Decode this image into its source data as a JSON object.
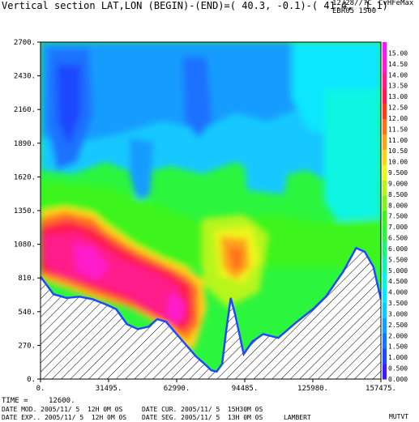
{
  "header": {
    "title": "Vertical section LAT,LON (BEGIN)-(END)=( 40.3, -0.1)-( 41.4,  1.1)",
    "units_label": "12/28//?C",
    "model_label": "CvHFeMax",
    "grid_label": "EBR05 1500"
  },
  "footer": {
    "time_label": "TIME =",
    "time_value": "12600.",
    "mod_line": "DATE MOD. 2005/11/ 5  12H 0M 0S",
    "cur_line": "DATE CUR. 2005/11/ 5  15H30M 0S",
    "exp_line": "DATE EXP.. 2005/11/ 5  12H 0M 0S",
    "seg_line": "DATE SEG. 2005/11/ 5  13H 0M 0S",
    "projection": "LAMBERT",
    "program": "MUTVT"
  },
  "colors": {
    "palette": [
      "#3a1cff",
      "#1f49ff",
      "#1a72ff",
      "#179cff",
      "#13c8ff",
      "#0de6ff",
      "#08f5e2",
      "#10f5b0",
      "#1cf578",
      "#2cf53e",
      "#3cf51c",
      "#7cf51c",
      "#b8f51c",
      "#f0f51c",
      "#ffd11c",
      "#ffa21c",
      "#ff701c",
      "#ff3a1c",
      "#ff1c4a",
      "#ff1c8a",
      "#ff1ccc",
      "#f01cf5"
    ],
    "terrain_fill": "#ffffff",
    "terrain_hatch": "#000000"
  },
  "chart_data": {
    "type": "heatmap",
    "title": "Vertical section LAT,LON (BEGIN)-(END)=( 40.3, -0.1)-( 41.4,  1.1)",
    "xlabel": "",
    "ylabel": "",
    "xlim": [
      0,
      157475
    ],
    "ylim": [
      0,
      2700
    ],
    "x_ticks": [
      "0.",
      "31495.",
      "62990.",
      "94485.",
      "125980.",
      "157475."
    ],
    "y_ticks": [
      "0.",
      "270.",
      "540.",
      "810.",
      "1080.",
      "1350.",
      "1620.",
      "1890.",
      "2160.",
      "2430.",
      "2700."
    ],
    "colorbar": {
      "levels": [
        "0.000",
        "0.500",
        "1.000",
        "1.500",
        "2.000",
        "2.500",
        "3.000",
        "3.500",
        "4.000",
        "4.500",
        "5.000",
        "5.500",
        "6.000",
        "6.500",
        "7.000",
        "7.500",
        "8.000",
        "8.500",
        "9.000",
        "9.500",
        "10.00",
        "10.50",
        "11.00",
        "11.50",
        "12.00",
        "12.50",
        "13.00",
        "13.50",
        "14.00",
        "14.50",
        "15.00"
      ],
      "min": 0,
      "max": 15.5
    },
    "terrain_profile": {
      "x": [
        0,
        6000,
        12000,
        18000,
        24000,
        30000,
        35000,
        40000,
        45000,
        50000,
        54000,
        58000,
        63000,
        68000,
        72000,
        76000,
        79000,
        81500,
        84000,
        86000,
        88000,
        90000,
        94000,
        98000,
        103000,
        110000,
        118000,
        126000,
        132000,
        140000,
        146000,
        150000,
        154000,
        157475
      ],
      "y": [
        820,
        680,
        650,
        660,
        640,
        600,
        560,
        440,
        400,
        420,
        480,
        460,
        360,
        260,
        180,
        120,
        70,
        60,
        120,
        400,
        650,
        520,
        200,
        300,
        360,
        330,
        450,
        560,
        660,
        860,
        1050,
        1020,
        900,
        640
      ]
    }
  }
}
